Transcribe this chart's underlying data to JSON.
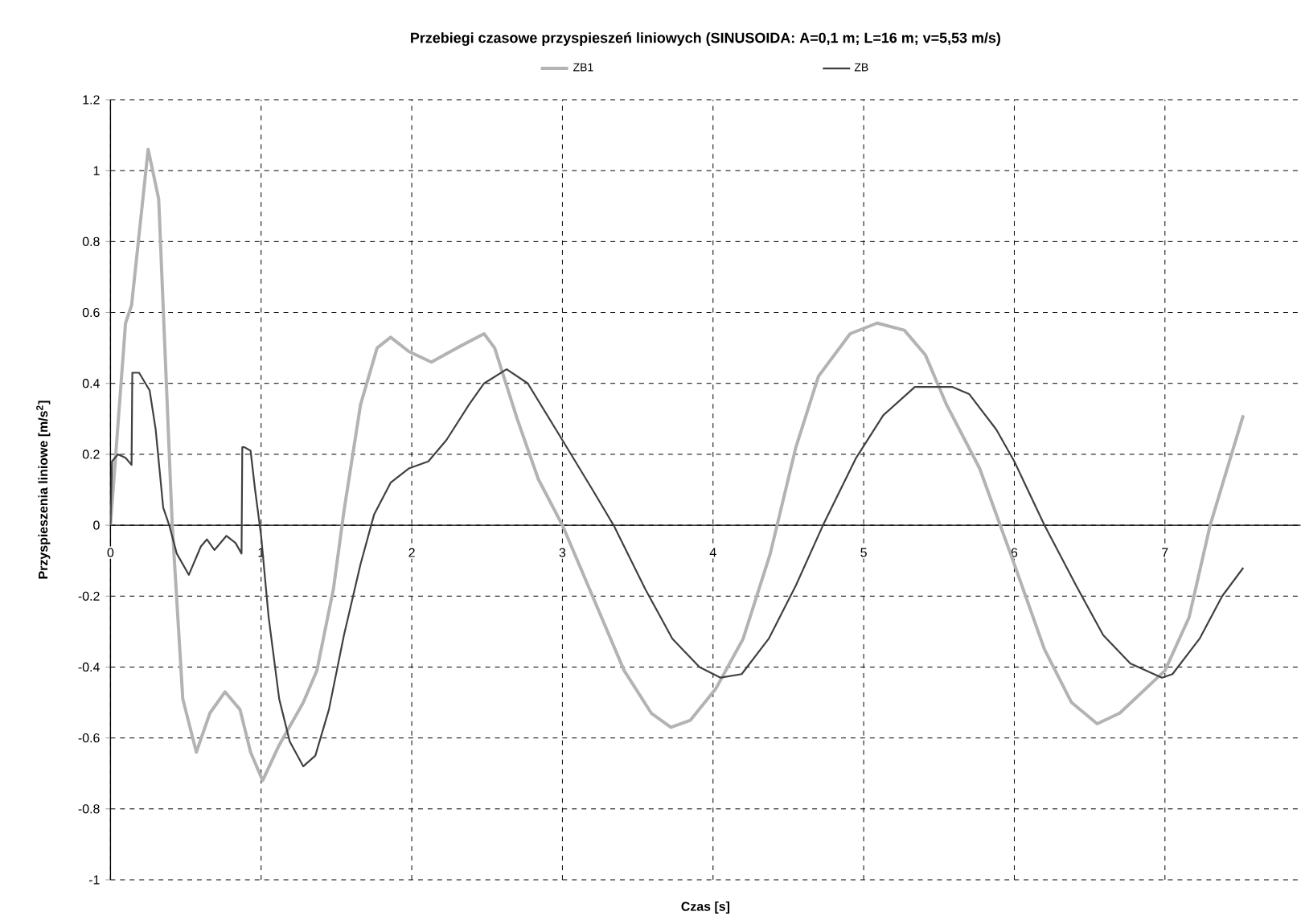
{
  "chart_data": {
    "type": "line",
    "title": "Przebiegi czasowe przyspieszeń liniowych (SINUSOIDA:  A=0,1 m; L=16 m;  v=5,53 m/s)",
    "xlabel": "Czas [s]",
    "ylabel": "Przyspieszenia liniowe [m/s$^{2}$]",
    "xlim": [
      0,
      7.9
    ],
    "xticks": [
      0,
      1,
      2,
      3,
      4,
      5,
      6,
      7
    ],
    "ylim": [
      -1,
      1.2
    ],
    "yticks": [
      -1,
      -0.8,
      -0.6,
      -0.4,
      -0.2,
      0,
      0.2,
      0.4,
      0.6,
      0.8,
      1,
      1.2
    ],
    "grid": true,
    "legend": "top",
    "line_style": "solid",
    "marker": "none",
    "series": [
      {
        "name": "ZB1",
        "color": "#b3b3b3",
        "x": [
          0,
          0.1,
          0.14,
          0.25,
          0.32,
          0.41,
          0.48,
          0.57,
          0.66,
          0.76,
          0.86,
          0.93,
          1.01,
          1.12,
          1.28,
          1.37,
          1.48,
          1.55,
          1.66,
          1.77,
          1.86,
          1.98,
          2.13,
          2.3,
          2.48,
          2.55,
          2.7,
          2.84,
          3.0,
          3.2,
          3.41,
          3.59,
          3.72,
          3.85,
          4.02,
          4.2,
          4.38,
          4.55,
          4.7,
          4.91,
          5.09,
          5.27,
          5.41,
          5.55,
          5.77,
          6.0,
          6.2,
          6.38,
          6.55,
          6.7,
          7.0,
          7.16,
          7.3,
          7.52
        ],
        "values": [
          0,
          0.57,
          0.62,
          1.06,
          0.92,
          0,
          -0.49,
          -0.64,
          -0.53,
          -0.47,
          -0.52,
          -0.64,
          -0.72,
          -0.62,
          -0.5,
          -0.41,
          -0.18,
          0.04,
          0.34,
          0.5,
          0.53,
          0.49,
          0.46,
          0.5,
          0.54,
          0.5,
          0.3,
          0.13,
          0,
          -0.2,
          -0.41,
          -0.53,
          -0.57,
          -0.55,
          -0.46,
          -0.32,
          -0.08,
          0.22,
          0.42,
          0.54,
          0.57,
          0.55,
          0.48,
          0.34,
          0.16,
          -0.11,
          -0.35,
          -0.5,
          -0.56,
          -0.53,
          -0.41,
          -0.26,
          0,
          0.31
        ]
      },
      {
        "name": "ZB",
        "color": "#404040",
        "x": [
          0,
          0.01,
          0.05,
          0.1,
          0.14,
          0.145,
          0.19,
          0.26,
          0.3,
          0.35,
          0.39,
          0.44,
          0.52,
          0.6,
          0.64,
          0.69,
          0.77,
          0.83,
          0.87,
          0.875,
          0.89,
          0.93,
          0.96,
          1.0,
          1.05,
          1.12,
          1.19,
          1.28,
          1.36,
          1.45,
          1.55,
          1.66,
          1.75,
          1.86,
          1.98,
          2.11,
          2.23,
          2.38,
          2.48,
          2.63,
          2.77,
          3.0,
          3.2,
          3.34,
          3.55,
          3.73,
          3.91,
          4.05,
          4.19,
          4.37,
          4.55,
          4.73,
          4.95,
          5.13,
          5.34,
          5.59,
          5.7,
          5.88,
          6.0,
          6.2,
          6.41,
          6.59,
          6.77,
          6.98,
          7.05,
          7.23,
          7.38,
          7.52
        ],
        "values": [
          0,
          0.18,
          0.2,
          0.19,
          0.17,
          0.43,
          0.43,
          0.38,
          0.27,
          0.05,
          0,
          -0.08,
          -0.14,
          -0.06,
          -0.04,
          -0.07,
          -0.03,
          -0.05,
          -0.08,
          0.22,
          0.22,
          0.21,
          0.1,
          -0.03,
          -0.26,
          -0.49,
          -0.61,
          -0.68,
          -0.65,
          -0.52,
          -0.31,
          -0.11,
          0.03,
          0.12,
          0.16,
          0.18,
          0.24,
          0.34,
          0.4,
          0.44,
          0.4,
          0.24,
          0.1,
          0,
          -0.18,
          -0.32,
          -0.4,
          -0.43,
          -0.42,
          -0.32,
          -0.17,
          0,
          0.19,
          0.31,
          0.39,
          0.39,
          0.37,
          0.27,
          0.18,
          0,
          -0.17,
          -0.31,
          -0.39,
          -0.43,
          -0.42,
          -0.32,
          -0.2,
          -0.12
        ]
      }
    ]
  }
}
